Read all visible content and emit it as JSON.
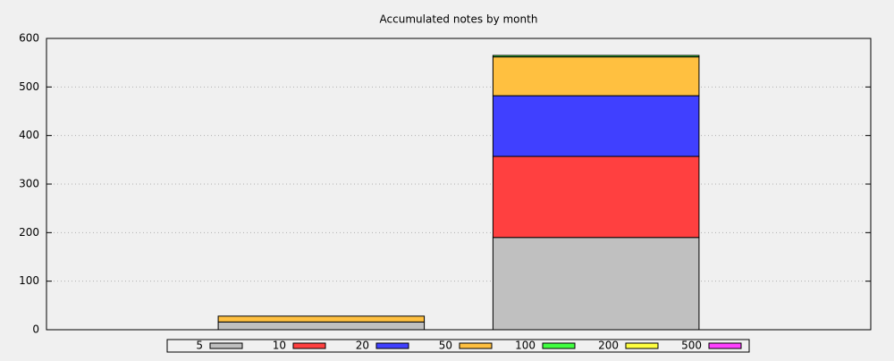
{
  "chart_data": {
    "type": "stacked_bar",
    "title": "Accumulated notes by month",
    "categories": [
      null,
      null
    ],
    "series": [
      {
        "name": "5",
        "color": "#c0c0c0",
        "values": [
          16,
          190
        ]
      },
      {
        "name": "10",
        "color": "#ff4040",
        "values": [
          0,
          167
        ]
      },
      {
        "name": "20",
        "color": "#4040ff",
        "values": [
          0,
          125
        ]
      },
      {
        "name": "50",
        "color": "#ffc040",
        "values": [
          12,
          80
        ]
      },
      {
        "name": "100",
        "color": "#40ff40",
        "values": [
          0,
          3
        ]
      },
      {
        "name": "200",
        "color": "#ffff40",
        "values": [
          0,
          0
        ]
      },
      {
        "name": "500",
        "color": "#ff40ff",
        "values": [
          0,
          0
        ]
      }
    ],
    "ylim": [
      0,
      600
    ],
    "yticks": [
      0,
      100,
      200,
      300,
      400,
      500,
      600
    ],
    "grid": true,
    "legend": "bottom"
  }
}
